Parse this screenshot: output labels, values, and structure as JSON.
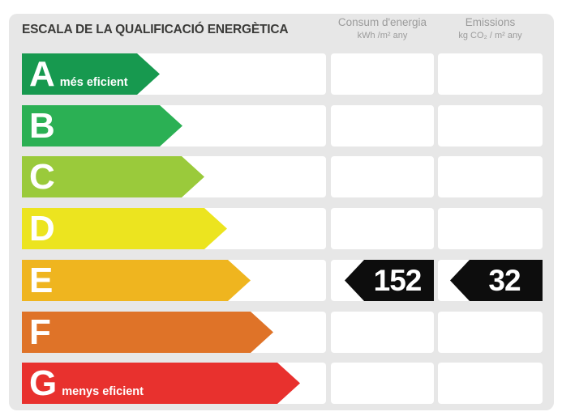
{
  "panel": {
    "title": "ESCALA DE LA QUALIFICACIÓ ENERGÈTICA",
    "background": "#e7e7e7"
  },
  "columns": [
    {
      "title": "Consum d'energia",
      "unit": "kWh /m²  any"
    },
    {
      "title": "Emissions",
      "unit": "kg CO₂  / m²  any"
    }
  ],
  "scale": {
    "ratings": [
      {
        "letter": "A",
        "caption": "més eficient",
        "color": "#17994f",
        "arrow_width": 170
      },
      {
        "letter": "B",
        "caption": "",
        "color": "#2bb054",
        "arrow_width": 198
      },
      {
        "letter": "C",
        "caption": "",
        "color": "#9aca3b",
        "arrow_width": 225
      },
      {
        "letter": "D",
        "caption": "",
        "color": "#ece41f",
        "arrow_width": 253
      },
      {
        "letter": "E",
        "caption": "",
        "color": "#efb51f",
        "arrow_width": 282
      },
      {
        "letter": "F",
        "caption": "",
        "color": "#df7328",
        "arrow_width": 310
      },
      {
        "letter": "G",
        "caption": "menys eficient",
        "color": "#e8312e",
        "arrow_width": 343
      }
    ],
    "current_rating": "E",
    "marker_color": "#0d0d0d",
    "values": {
      "consum": "152",
      "emissions": "32"
    }
  },
  "chart_data": {
    "type": "table",
    "title": "ESCALA DE LA QUALIFICACIÓ ENERGÈTICA",
    "categories": [
      "A",
      "B",
      "C",
      "D",
      "E",
      "F",
      "G"
    ],
    "category_captions": {
      "A": "més eficient",
      "G": "menys eficient"
    },
    "columns": [
      "Consum d'energia (kWh/m² any)",
      "Emissions (kg CO₂/m² any)"
    ],
    "current_rating": "E",
    "values": {
      "consum_energia_kwh_m2_any": 152,
      "emissions_kg_co2_m2_any": 32
    },
    "palette": {
      "A": "#17994f",
      "B": "#2bb054",
      "C": "#9aca3b",
      "D": "#ece41f",
      "E": "#efb51f",
      "F": "#df7328",
      "G": "#e8312e"
    }
  }
}
